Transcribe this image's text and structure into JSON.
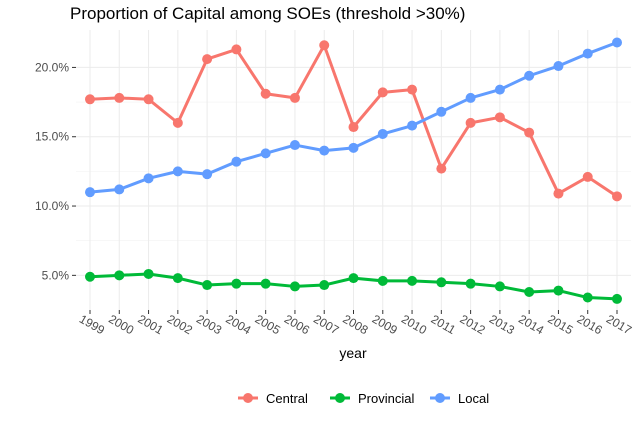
{
  "chart_data": {
    "type": "line",
    "title": "Proportion of Capital among SOEs (threshold >30%)",
    "xlabel": "year",
    "ylabel": "",
    "x": [
      "1999",
      "2000",
      "2001",
      "2002",
      "2003",
      "2004",
      "2005",
      "2006",
      "2007",
      "2008",
      "2009",
      "2010",
      "2011",
      "2012",
      "2013",
      "2014",
      "2015",
      "2016",
      "2017"
    ],
    "yticks": [
      {
        "value": 0.05,
        "label": "5.0%"
      },
      {
        "value": 0.1,
        "label": "10.0%"
      },
      {
        "value": 0.15,
        "label": "15.0%"
      },
      {
        "value": 0.2,
        "label": "20.0%"
      }
    ],
    "ylim": [
      0.025,
      0.227
    ],
    "grid": true,
    "legend_position": "bottom",
    "series": [
      {
        "name": "Central",
        "color": "#F8766D",
        "values": [
          0.177,
          0.178,
          0.177,
          0.16,
          0.206,
          0.213,
          0.181,
          0.178,
          0.216,
          0.157,
          0.182,
          0.184,
          0.127,
          0.16,
          0.164,
          0.153,
          0.109,
          0.121,
          0.107
        ]
      },
      {
        "name": "Provincial",
        "color": "#00BA38",
        "values": [
          0.049,
          0.05,
          0.051,
          0.048,
          0.043,
          0.044,
          0.044,
          0.042,
          0.043,
          0.048,
          0.046,
          0.046,
          0.045,
          0.044,
          0.042,
          0.038,
          0.039,
          0.034,
          0.033
        ]
      },
      {
        "name": "Local",
        "color": "#619CFF",
        "values": [
          0.11,
          0.112,
          0.12,
          0.125,
          0.123,
          0.132,
          0.138,
          0.144,
          0.14,
          0.142,
          0.152,
          0.158,
          0.168,
          0.178,
          0.184,
          0.194,
          0.201,
          0.21,
          0.218
        ]
      }
    ]
  }
}
